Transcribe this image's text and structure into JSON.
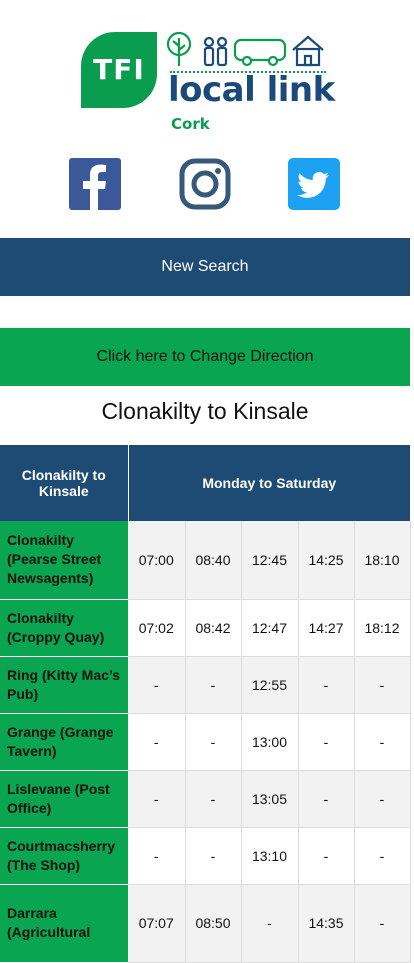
{
  "brand": {
    "badge": "TFI",
    "title": "local link",
    "region": "Cork",
    "green": "#0a9d4f",
    "navy": "#1a4a7a",
    "icons": [
      "tree-icon",
      "people-icon",
      "bus-icon",
      "house-icon"
    ]
  },
  "social": {
    "facebook_icon": "facebook-icon",
    "instagram_icon": "instagram-icon",
    "twitter_icon": "twitter-icon"
  },
  "buttons": {
    "new_search": "New Search",
    "change_direction": "Click here to Change Direction"
  },
  "route": {
    "title": "Clonakilty to Kinsale"
  },
  "timetable": {
    "header_stop": "Clonakilty to Kinsale",
    "header_days": "Monday to Saturday",
    "rows": [
      {
        "stop": "Clonakilty (Pearse Street Newsagents)",
        "times": [
          "07:00",
          "08:40",
          "12:45",
          "14:25",
          "18:10"
        ]
      },
      {
        "stop": "Clonakilty (Croppy Quay)",
        "times": [
          "07:02",
          "08:42",
          "12:47",
          "14:27",
          "18:12"
        ]
      },
      {
        "stop": "Ring (Kitty Mac’s Pub)",
        "times": [
          "-",
          "-",
          "12:55",
          "-",
          "-"
        ]
      },
      {
        "stop": "Grange (Grange Tavern)",
        "times": [
          "-",
          "-",
          "13:00",
          "-",
          "-"
        ]
      },
      {
        "stop": "Lislevane (Post Office)",
        "times": [
          "-",
          "-",
          "13:05",
          "-",
          "-"
        ]
      },
      {
        "stop": "Courtmacsherry (The Shop)",
        "times": [
          "-",
          "-",
          "13:10",
          "-",
          "-"
        ]
      },
      {
        "stop": "Darrara (Agricultural",
        "times": [
          "07:07",
          "08:50",
          "-",
          "14:35",
          "-"
        ]
      }
    ]
  }
}
